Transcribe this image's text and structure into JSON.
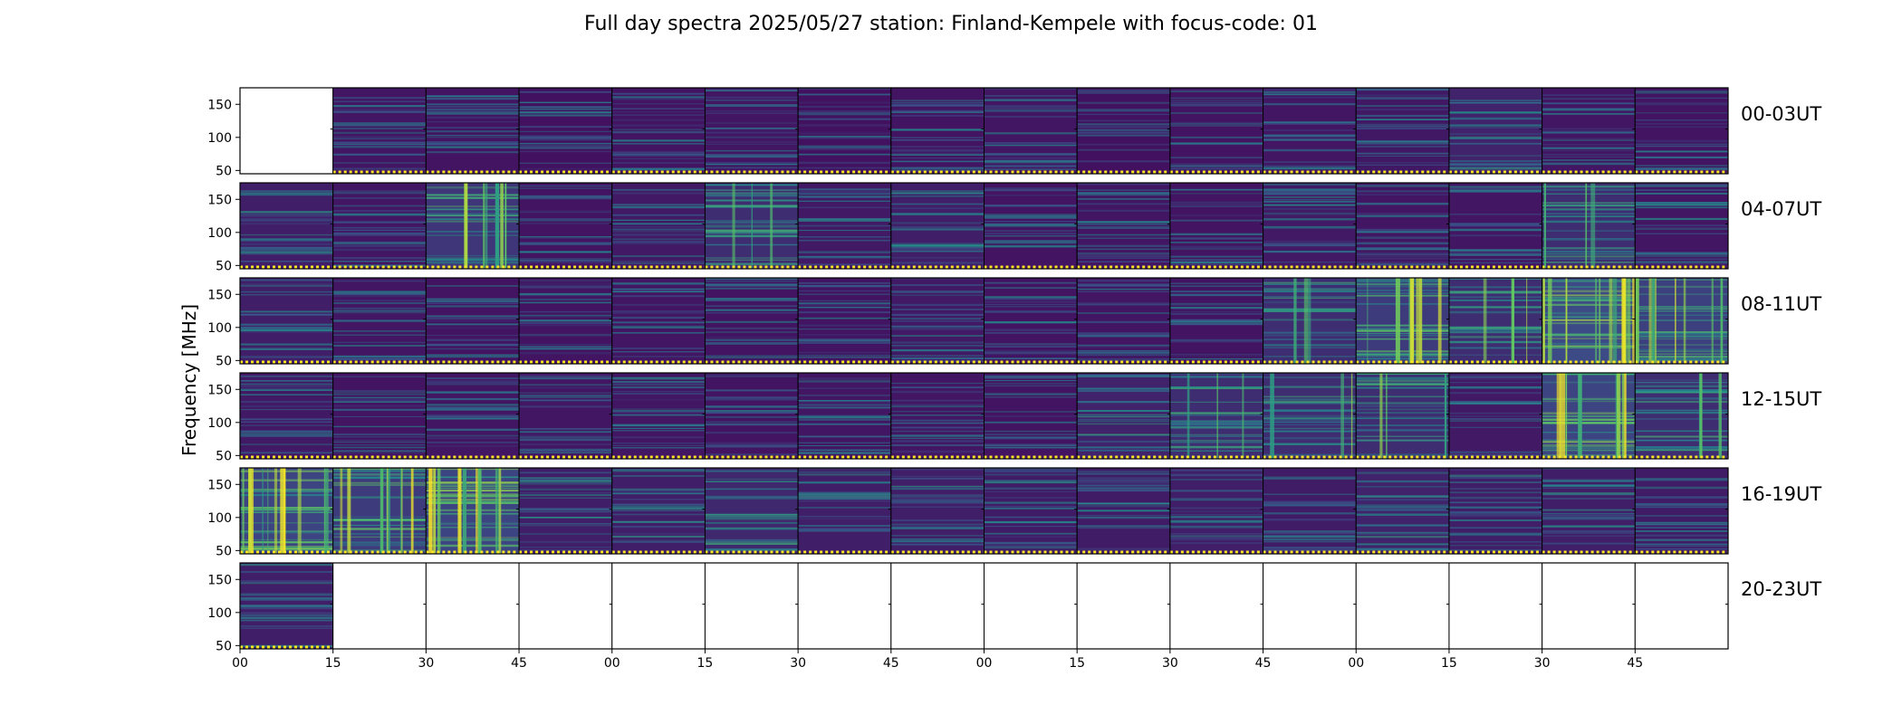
{
  "chart_data": {
    "type": "heatmap",
    "title": "Full day spectra 2025/05/27 station: Finland-Kempele with focus-code: 01",
    "ylabel": "Frequency [MHz]",
    "ylim": [
      45,
      175
    ],
    "y_ticks": [
      50,
      100,
      150
    ],
    "x_tick_labels": [
      "00",
      "15",
      "30",
      "45",
      "00",
      "15",
      "30",
      "45",
      "00",
      "15",
      "30",
      "45",
      "00",
      "15",
      "30",
      "45"
    ],
    "panels_per_row": 16,
    "panel_minutes": 15,
    "colormap": [
      "#440154",
      "#3b528b",
      "#21918c",
      "#5ec962",
      "#fde725"
    ],
    "missing_color": "#ffffff",
    "rows": [
      {
        "label": "00-03UT",
        "intensity": [
          0.0,
          0.22,
          0.2,
          0.18,
          0.2,
          0.22,
          0.18,
          0.2,
          0.22,
          0.18,
          0.2,
          0.22,
          0.24,
          0.35,
          0.22,
          0.2
        ],
        "missing": [
          true,
          false,
          false,
          false,
          false,
          false,
          false,
          false,
          false,
          false,
          false,
          false,
          false,
          false,
          false,
          false
        ]
      },
      {
        "label": "04-07UT",
        "intensity": [
          0.3,
          0.22,
          0.55,
          0.2,
          0.25,
          0.45,
          0.25,
          0.3,
          0.2,
          0.22,
          0.2,
          0.25,
          0.22,
          0.22,
          0.45,
          0.22
        ],
        "missing": [
          false,
          false,
          false,
          false,
          false,
          false,
          false,
          false,
          false,
          false,
          false,
          false,
          false,
          false,
          false,
          false
        ]
      },
      {
        "label": "08-11UT",
        "intensity": [
          0.3,
          0.22,
          0.2,
          0.2,
          0.22,
          0.2,
          0.2,
          0.25,
          0.2,
          0.22,
          0.2,
          0.45,
          0.6,
          0.45,
          0.75,
          0.65
        ],
        "missing": [
          false,
          false,
          false,
          false,
          false,
          false,
          false,
          false,
          false,
          false,
          false,
          false,
          false,
          false,
          false,
          false
        ]
      },
      {
        "label": "12-15UT",
        "intensity": [
          0.25,
          0.2,
          0.22,
          0.22,
          0.22,
          0.2,
          0.22,
          0.22,
          0.2,
          0.35,
          0.45,
          0.45,
          0.45,
          0.25,
          0.7,
          0.45
        ],
        "missing": [
          false,
          false,
          false,
          false,
          false,
          false,
          false,
          false,
          false,
          false,
          false,
          false,
          false,
          false,
          false,
          false
        ]
      },
      {
        "label": "16-19UT",
        "intensity": [
          0.7,
          0.6,
          0.7,
          0.3,
          0.3,
          0.4,
          0.3,
          0.3,
          0.28,
          0.28,
          0.3,
          0.28,
          0.35,
          0.3,
          0.3,
          0.28
        ],
        "missing": [
          false,
          false,
          false,
          false,
          false,
          false,
          false,
          false,
          false,
          false,
          false,
          false,
          false,
          false,
          false,
          false
        ]
      },
      {
        "label": "20-23UT",
        "intensity": [
          0.3,
          0,
          0,
          0,
          0,
          0,
          0,
          0,
          0,
          0,
          0,
          0,
          0,
          0,
          0,
          0
        ],
        "missing": [
          false,
          true,
          true,
          true,
          true,
          true,
          true,
          true,
          true,
          true,
          true,
          true,
          true,
          true,
          true,
          true
        ]
      }
    ]
  }
}
